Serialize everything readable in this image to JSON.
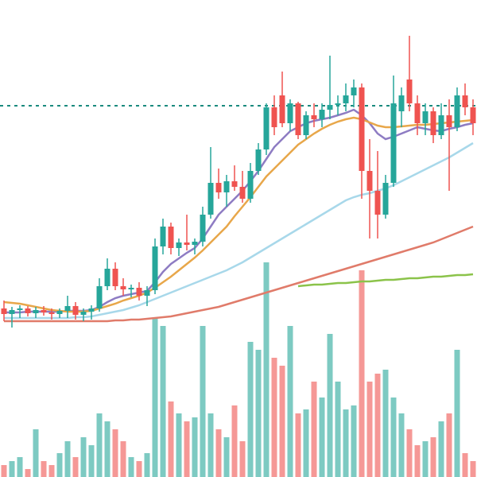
{
  "chart_data": {
    "type": "candlestick",
    "ylim": [
      0,
      600
    ],
    "y2lim": [
      0,
      600
    ],
    "up_color": "#26a69a",
    "down_color": "#ef5350",
    "open": [
      212,
      205,
      210,
      212,
      206,
      210,
      207,
      205,
      209,
      215,
      204,
      208,
      212,
      240,
      262,
      240,
      236,
      238,
      228,
      235,
      290,
      315,
      288,
      295,
      292,
      296,
      330,
      370,
      358,
      372,
      365,
      350,
      385,
      412,
      465,
      480,
      445,
      470,
      430,
      455,
      450,
      462,
      468,
      470,
      480,
      490,
      385,
      360,
      330,
      370,
      460,
      500,
      470,
      445,
      460,
      430,
      455,
      440,
      480,
      465
    ],
    "high": [
      222,
      214,
      216,
      215,
      214,
      215,
      212,
      212,
      228,
      220,
      212,
      216,
      250,
      275,
      270,
      250,
      242,
      245,
      240,
      300,
      325,
      320,
      300,
      330,
      300,
      340,
      415,
      388,
      380,
      392,
      385,
      395,
      420,
      470,
      480,
      510,
      475,
      472,
      460,
      470,
      470,
      530,
      480,
      495,
      500,
      495,
      425,
      410,
      380,
      505,
      490,
      555,
      480,
      470,
      465,
      470,
      475,
      490,
      495,
      475
    ],
    "low": [
      196,
      188,
      200,
      202,
      200,
      203,
      198,
      200,
      200,
      198,
      196,
      198,
      208,
      235,
      235,
      228,
      226,
      222,
      215,
      230,
      280,
      280,
      278,
      285,
      280,
      290,
      325,
      350,
      340,
      360,
      345,
      345,
      380,
      405,
      430,
      440,
      435,
      425,
      425,
      440,
      440,
      450,
      455,
      460,
      465,
      350,
      300,
      300,
      325,
      365,
      440,
      460,
      430,
      430,
      420,
      425,
      360,
      435,
      455,
      430
    ],
    "close": [
      205,
      210,
      212,
      206,
      210,
      207,
      205,
      209,
      215,
      204,
      208,
      212,
      240,
      262,
      240,
      236,
      238,
      228,
      235,
      290,
      315,
      288,
      295,
      292,
      296,
      330,
      370,
      358,
      372,
      365,
      350,
      385,
      412,
      465,
      440,
      445,
      470,
      430,
      455,
      450,
      462,
      468,
      470,
      480,
      490,
      385,
      360,
      330,
      370,
      470,
      480,
      470,
      445,
      460,
      430,
      455,
      440,
      480,
      465,
      445
    ],
    "volume": [
      15,
      20,
      25,
      10,
      60,
      20,
      15,
      30,
      45,
      25,
      50,
      40,
      80,
      70,
      60,
      45,
      25,
      20,
      30,
      200,
      190,
      95,
      80,
      70,
      75,
      190,
      80,
      60,
      50,
      90,
      45,
      170,
      160,
      270,
      150,
      140,
      190,
      80,
      85,
      120,
      100,
      180,
      120,
      85,
      90,
      260,
      120,
      130,
      135,
      100,
      80,
      60,
      40,
      45,
      50,
      70,
      80,
      160,
      30,
      20
    ],
    "series": [
      {
        "color": "#8e7cc3",
        "values": [
          207,
          207,
          207,
          208,
          208,
          208,
          208,
          208,
          209,
          209,
          209,
          210,
          214,
          220,
          225,
          228,
          230,
          232,
          234,
          245,
          258,
          268,
          275,
          282,
          288,
          300,
          315,
          330,
          340,
          350,
          360,
          372,
          385,
          400,
          415,
          425,
          435,
          440,
          445,
          448,
          450,
          452,
          455,
          458,
          462,
          455,
          445,
          432,
          425,
          428,
          432,
          436,
          440,
          438,
          436,
          435,
          438,
          440,
          443,
          445
        ]
      },
      {
        "color": "#e8a74a",
        "values": [
          220,
          219,
          218,
          216,
          214,
          212,
          210,
          209,
          208,
          208,
          208,
          209,
          212,
          215,
          218,
          222,
          225,
          228,
          232,
          238,
          245,
          252,
          260,
          268,
          276,
          285,
          295,
          305,
          315,
          328,
          340,
          352,
          365,
          378,
          388,
          398,
          408,
          418,
          425,
          432,
          438,
          443,
          447,
          450,
          452,
          450,
          446,
          442,
          440,
          440,
          441,
          442,
          443,
          443,
          444,
          445,
          446,
          447,
          448,
          449
        ]
      },
      {
        "color": "#a8d8ea",
        "values": [
          200,
          200,
          200,
          200,
          200,
          200,
          200,
          200,
          200,
          201,
          201,
          202,
          204,
          206,
          208,
          210,
          213,
          216,
          220,
          224,
          228,
          232,
          236,
          240,
          244,
          248,
          252,
          256,
          260,
          265,
          270,
          276,
          282,
          288,
          294,
          300,
          306,
          312,
          318,
          324,
          330,
          336,
          342,
          348,
          352,
          355,
          357,
          360,
          363,
          367,
          372,
          377,
          382,
          387,
          392,
          397,
          402,
          408,
          414,
          420
        ]
      },
      {
        "color": "#e07b6a",
        "values": [
          196,
          196,
          196,
          196,
          196,
          196,
          196,
          196,
          196,
          196,
          196,
          196,
          196,
          196,
          197,
          197,
          198,
          198,
          199,
          200,
          201,
          202,
          204,
          206,
          208,
          210,
          212,
          214,
          217,
          220,
          223,
          226,
          229,
          232,
          235,
          238,
          241,
          244,
          247,
          250,
          253,
          256,
          259,
          262,
          265,
          268,
          271,
          274,
          277,
          280,
          283,
          286,
          289,
          292,
          295,
          299,
          303,
          307,
          311,
          315
        ]
      },
      {
        "color": "#8bc34a",
        "values": [
          null,
          null,
          null,
          null,
          null,
          null,
          null,
          null,
          null,
          null,
          null,
          null,
          null,
          null,
          null,
          null,
          null,
          null,
          null,
          null,
          null,
          null,
          null,
          null,
          null,
          null,
          null,
          null,
          null,
          null,
          null,
          null,
          null,
          null,
          null,
          null,
          null,
          240,
          241,
          242,
          242,
          243,
          244,
          244,
          245,
          246,
          246,
          247,
          248,
          248,
          249,
          250,
          250,
          251,
          252,
          252,
          253,
          254,
          254,
          255
        ]
      }
    ],
    "price_line": {
      "value": 467,
      "color": "#1a8a7e"
    }
  }
}
